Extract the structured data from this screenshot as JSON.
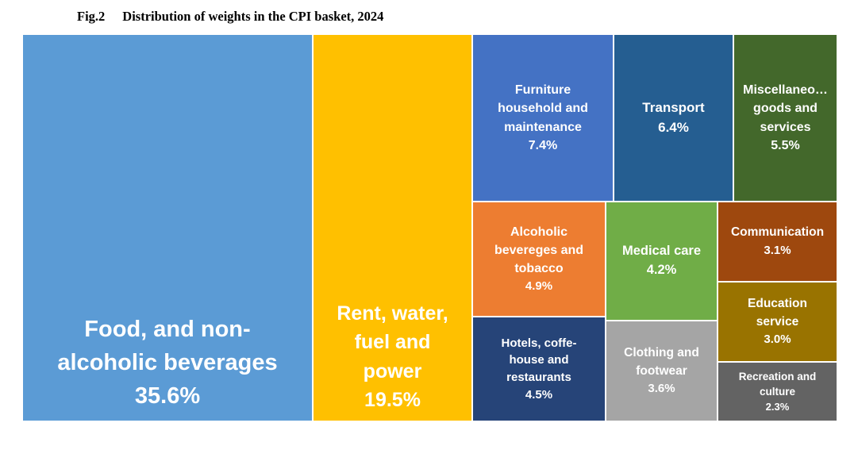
{
  "title_prefix": "Fig.2",
  "title": "Distribution of weights in the CPI basket, 2024",
  "chart_data": {
    "type": "treemap",
    "unit": "%",
    "items": [
      {
        "label": "Food, and non-\nalcoholic beverages",
        "value": 35.6,
        "value_label": "35.6%",
        "color": "#5B9BD5"
      },
      {
        "label": "Rent, water,\nfuel and\npower",
        "value": 19.5,
        "value_label": "19.5%",
        "color": "#FFC000"
      },
      {
        "label": "Furniture\nhousehold and\nmaintenance",
        "value": 7.4,
        "value_label": "7.4%",
        "color": "#4472C4"
      },
      {
        "label": "Transport",
        "value": 6.4,
        "value_label": "6.4%",
        "color": "#255E91"
      },
      {
        "label": "Miscellaneo…\ngoods and\nservices",
        "value": 5.5,
        "value_label": "5.5%",
        "color": "#43682B"
      },
      {
        "label": "Alcoholic\nbevereges and\ntobacco",
        "value": 4.9,
        "value_label": "4.9%",
        "color": "#ED7D31"
      },
      {
        "label": "Hotels, coffe-\nhouse and\nrestaurants",
        "value": 4.5,
        "value_label": "4.5%",
        "color": "#264478"
      },
      {
        "label": "Medical care",
        "value": 4.2,
        "value_label": "4.2%",
        "color": "#70AD47"
      },
      {
        "label": "Clothing and\nfootwear",
        "value": 3.6,
        "value_label": "3.6%",
        "color": "#A5A5A5"
      },
      {
        "label": "Communication",
        "value": 3.1,
        "value_label": "3.1%",
        "color": "#9E480E"
      },
      {
        "label": "Education\nservice",
        "value": 3.0,
        "value_label": "3.0%",
        "color": "#997300"
      },
      {
        "label": "Recreation and\nculture",
        "value": 2.3,
        "value_label": "2.3%",
        "color": "#636363"
      }
    ]
  }
}
